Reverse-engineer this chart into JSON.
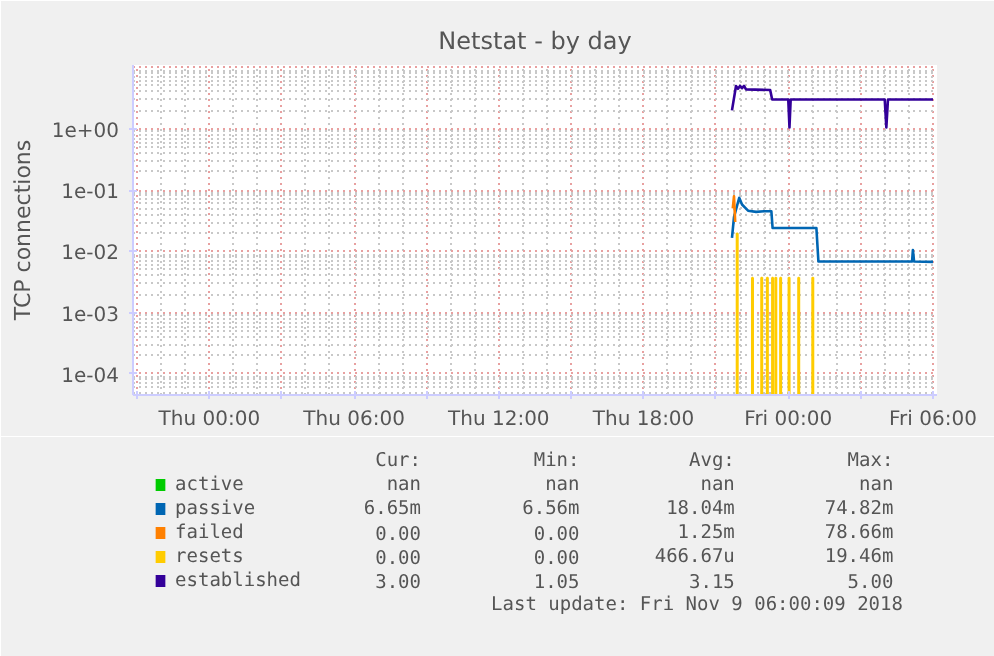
{
  "chart_data": {
    "type": "line",
    "title": "Netstat - by day",
    "ylabel": "TCP connections",
    "log": true,
    "grid": true,
    "legend": "bottom",
    "xlim": [
      "2018-11-07T20:50",
      "2018-11-09T06:10"
    ],
    "ylim": [
      4.5e-05,
      11
    ],
    "xticks": [
      {
        "value": "2018-11-07T21:00",
        "label": null
      },
      {
        "value": "2018-11-08T00:00",
        "label": "Thu 00:00"
      },
      {
        "value": "2018-11-08T03:00",
        "label": null
      },
      {
        "value": "2018-11-08T06:00",
        "label": "Thu 06:00"
      },
      {
        "value": "2018-11-08T09:00",
        "label": null
      },
      {
        "value": "2018-11-08T12:00",
        "label": "Thu 12:00"
      },
      {
        "value": "2018-11-08T15:00",
        "label": null
      },
      {
        "value": "2018-11-08T18:00",
        "label": "Thu 18:00"
      },
      {
        "value": "2018-11-08T21:00",
        "label": null
      },
      {
        "value": "2018-11-09T00:00",
        "label": "Fri 00:00"
      },
      {
        "value": "2018-11-09T03:00",
        "label": null
      },
      {
        "value": "2018-11-09T06:00",
        "label": "Fri 06:00"
      }
    ],
    "yticks": [
      {
        "value": 0.0001,
        "label": "1e-04"
      },
      {
        "value": 0.001,
        "label": "1e-03"
      },
      {
        "value": 0.01,
        "label": "1e-02"
      },
      {
        "value": 0.1,
        "label": "1e-01"
      },
      {
        "value": 1,
        "label": "1e+00"
      }
    ],
    "series": [
      {
        "name": "active",
        "color": "#00cc00"
      },
      {
        "name": "passive",
        "color": "#0066b3",
        "x": [
          "2018-11-08T21:40",
          "2018-11-08T21:45",
          "2018-11-08T21:58",
          "2018-11-08T22:05",
          "2018-11-08T22:12",
          "2018-11-08T22:20",
          "2018-11-08T22:40",
          "2018-11-08T23:00",
          "2018-11-08T23:18",
          "2018-11-08T23:21",
          "2018-11-09T01:10",
          "2018-11-09T01:15",
          "2018-11-09T05:08",
          "2018-11-09T05:10",
          "2018-11-09T05:13",
          "2018-11-09T06:00"
        ],
        "values": [
          0.0166,
          0.036,
          0.0748,
          0.058,
          0.052,
          0.046,
          0.044,
          0.045,
          0.045,
          0.024,
          0.024,
          0.0068,
          0.0068,
          0.0105,
          0.0068,
          0.0067
        ]
      },
      {
        "name": "failed",
        "color": "#ff8000",
        "x": [
          "2018-11-08T21:42",
          "2018-11-08T21:45",
          "2018-11-08T21:48"
        ],
        "values": [
          0.05,
          0.0787,
          0.03
        ]
      },
      {
        "name": "resets",
        "color": "#ffcc00",
        "type": "bar",
        "x": [
          "2018-11-08T21:53",
          "2018-11-08T22:31",
          "2018-11-08T22:54",
          "2018-11-08T23:08",
          "2018-11-08T23:21",
          "2018-11-08T23:29",
          "2018-11-08T23:41",
          "2018-11-09T00:02",
          "2018-11-09T00:26",
          "2018-11-09T01:01"
        ],
        "values": [
          0.0195,
          0.0037,
          0.0037,
          0.0037,
          0.0037,
          0.0037,
          0.0037,
          0.0037,
          0.0037,
          0.0037
        ]
      },
      {
        "name": "established",
        "color": "#330099",
        "x": [
          "2018-11-08T21:40",
          "2018-11-08T21:50",
          "2018-11-08T21:55",
          "2018-11-08T22:00",
          "2018-11-08T22:05",
          "2018-11-08T22:10",
          "2018-11-08T22:15",
          "2018-11-08T23:15",
          "2018-11-08T23:20",
          "2018-11-09T00:00",
          "2018-11-09T00:03",
          "2018-11-09T00:06",
          "2018-11-09T04:00",
          "2018-11-09T04:04",
          "2018-11-09T04:08",
          "2018-11-09T06:00"
        ],
        "values": [
          2,
          5,
          4.5,
          5,
          4.6,
          5,
          4.4,
          4.3,
          3,
          3,
          1.05,
          3,
          3,
          1.05,
          3,
          3
        ]
      }
    ],
    "annotations": [
      "Cur:",
      "Min:",
      "Avg:",
      "Max:",
      "nan",
      "nan",
      "nan",
      "nan",
      "6.65m",
      "6.56m",
      "18.04m",
      "74.82m",
      "0.00",
      "0.00",
      "1.25m",
      "78.66m",
      "0.00",
      "0.00",
      "466.67u",
      "19.46m",
      "3.00",
      "1.05",
      "3.15",
      "5.00",
      "Last update: Fri Nov  9 06:00:09 2018"
    ]
  }
}
